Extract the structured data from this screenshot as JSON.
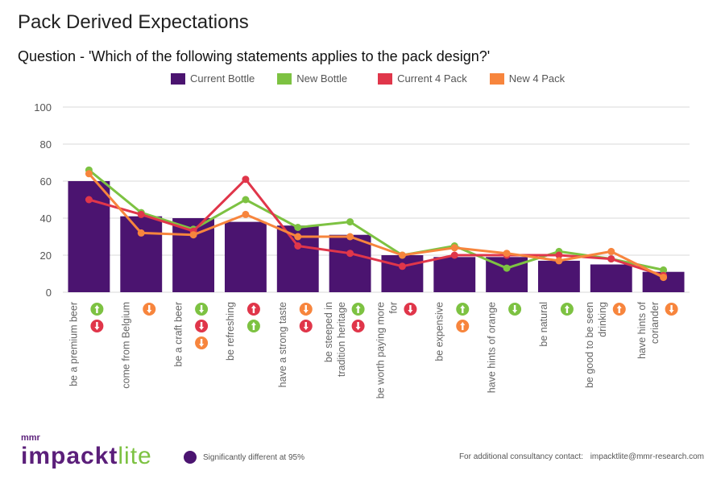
{
  "title": "Pack Derived Expectations",
  "subtitle": "Question - 'Which of the following statements applies to the pack design?'",
  "colors": {
    "current_bottle": "#4b1470",
    "new_bottle": "#7dc242",
    "current_4_pack": "#e0364a",
    "new_4_pack": "#f7853d",
    "grid": "#d9d9d9",
    "axis_text": "#555555"
  },
  "chart_data": {
    "type": "bar",
    "title": "",
    "xlabel": "",
    "ylabel": "",
    "ylim": [
      0,
      100
    ],
    "yticks": [
      0,
      20,
      40,
      60,
      80,
      100
    ],
    "grid": true,
    "legend_position": "top",
    "categories": [
      [
        "be a premium beer"
      ],
      [
        "come from Belgium"
      ],
      [
        "be a craft beer"
      ],
      [
        "be refreshing"
      ],
      [
        "have a strong taste"
      ],
      [
        "be steeped in",
        "tradition heritage"
      ],
      [
        "be worth paying more",
        "for"
      ],
      [
        "be expensive"
      ],
      [
        "have hints of orange"
      ],
      [
        "be natural"
      ],
      [
        "be good to be seen",
        "drinking"
      ],
      [
        "have hints of",
        "coriander"
      ]
    ],
    "series": [
      {
        "name": "Current Bottle",
        "kind": "bar",
        "color": "#4b1470",
        "values": [
          60,
          41,
          40,
          38,
          36,
          31,
          20,
          19,
          19,
          17,
          15,
          11
        ]
      },
      {
        "name": "New Bottle",
        "kind": "line",
        "color": "#7dc242",
        "values": [
          66,
          43,
          34,
          50,
          35,
          38,
          20,
          25,
          13,
          22,
          18,
          12
        ]
      },
      {
        "name": "Current 4 Pack",
        "kind": "line",
        "color": "#e0364a",
        "values": [
          50,
          42,
          33,
          61,
          25,
          21,
          14,
          20,
          20,
          20,
          18,
          9
        ]
      },
      {
        "name": "New 4 Pack",
        "kind": "line",
        "color": "#f7853d",
        "values": [
          64,
          32,
          31,
          42,
          30,
          30,
          20,
          24,
          21,
          17,
          22,
          8
        ]
      }
    ],
    "significance_markers": [
      [
        {
          "series": "New Bottle",
          "dir": "up"
        },
        {
          "series": "Current 4 Pack",
          "dir": "down"
        }
      ],
      [
        {
          "series": "New 4 Pack",
          "dir": "down"
        }
      ],
      [
        {
          "series": "New Bottle",
          "dir": "down"
        },
        {
          "series": "Current 4 Pack",
          "dir": "down"
        },
        {
          "series": "New 4 Pack",
          "dir": "down"
        }
      ],
      [
        {
          "series": "Current 4 Pack",
          "dir": "up"
        },
        {
          "series": "New Bottle",
          "dir": "up"
        }
      ],
      [
        {
          "series": "New 4 Pack",
          "dir": "down"
        },
        {
          "series": "Current 4 Pack",
          "dir": "down"
        }
      ],
      [
        {
          "series": "New Bottle",
          "dir": "up"
        },
        {
          "series": "Current 4 Pack",
          "dir": "down"
        }
      ],
      [
        {
          "series": "Current 4 Pack",
          "dir": "down"
        }
      ],
      [
        {
          "series": "New Bottle",
          "dir": "up"
        },
        {
          "series": "New 4 Pack",
          "dir": "up"
        }
      ],
      [
        {
          "series": "New Bottle",
          "dir": "down"
        }
      ],
      [
        {
          "series": "New Bottle",
          "dir": "up"
        }
      ],
      [
        {
          "series": "New 4 Pack",
          "dir": "up"
        }
      ],
      [
        {
          "series": "New 4 Pack",
          "dir": "down"
        }
      ]
    ]
  },
  "footer": {
    "logo_small": "mmr",
    "logo_main": "impackt",
    "logo_lite": "lite",
    "significance_note": "Significantly different at 95%",
    "contact_label": "For additional consultancy contact:",
    "contact_email": "impacktlite@mmr-research.com"
  }
}
